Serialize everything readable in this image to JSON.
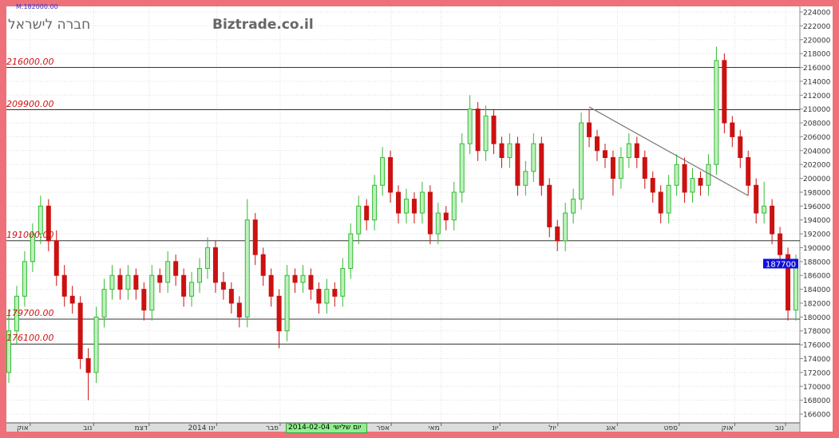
{
  "header": {
    "top_note": "M.182000.00",
    "company": "חברה לישראל",
    "brand": "Biztrade.co.il"
  },
  "cursor": {
    "day": "יום שלישי",
    "date": "2014-02-04"
  },
  "colors": {
    "up": "#33bb33",
    "down": "#cc1111",
    "level_line": "#333333",
    "level_label": "#d01010",
    "last_price_bg": "#1010dd",
    "frame": "#ee717a"
  },
  "chart_data": {
    "type": "candlestick",
    "ylim": [
      165000,
      225000
    ],
    "yticks": [
      166000,
      168000,
      170000,
      172000,
      174000,
      176000,
      178000,
      180000,
      182000,
      184000,
      186000,
      188000,
      190000,
      192000,
      194000,
      196000,
      198000,
      200000,
      202000,
      204000,
      206000,
      208000,
      210000,
      212000,
      214000,
      216000,
      218000,
      220000,
      222000,
      224000
    ],
    "xticks": [
      {
        "label": "אוק",
        "pos": 0.03
      },
      {
        "label": "נוב",
        "pos": 0.11
      },
      {
        "label": "דצמ",
        "pos": 0.18
      },
      {
        "label": "ינו 2014",
        "pos": 0.265
      },
      {
        "label": "פבר",
        "pos": 0.345
      },
      {
        "label": "אפר",
        "pos": 0.485
      },
      {
        "label": "מאי",
        "pos": 0.548
      },
      {
        "label": "יונ",
        "pos": 0.622
      },
      {
        "label": "יול",
        "pos": 0.695
      },
      {
        "label": "אוג",
        "pos": 0.77
      },
      {
        "label": "ספט",
        "pos": 0.848
      },
      {
        "label": "אוק",
        "pos": 0.918
      },
      {
        "label": "נוב",
        "pos": 0.982
      }
    ],
    "last_price": "187700",
    "levels": [
      {
        "value": 216000,
        "label": "216000.00"
      },
      {
        "value": 209900,
        "label": "209900.00"
      },
      {
        "value": 191000,
        "label": "191000.00"
      },
      {
        "value": 179700,
        "label": "179700.00"
      },
      {
        "value": 176100,
        "label": "176100.00"
      }
    ],
    "trendline": {
      "from": {
        "candle": 73,
        "price": 210300
      },
      "to": {
        "candle": 93,
        "price": 197500
      }
    },
    "candles_ohlc": [
      [
        172000,
        181000,
        170500,
        178000
      ],
      [
        178000,
        184500,
        176000,
        183000
      ],
      [
        183000,
        189500,
        181500,
        188000
      ],
      [
        188000,
        193500,
        186500,
        192000
      ],
      [
        192000,
        197500,
        190500,
        196000
      ],
      [
        196000,
        197000,
        189500,
        191000
      ],
      [
        191000,
        192500,
        184500,
        186000
      ],
      [
        186000,
        187500,
        181500,
        183000
      ],
      [
        183000,
        184500,
        180500,
        182000
      ],
      [
        182000,
        183000,
        172500,
        174000
      ],
      [
        174000,
        175500,
        168000,
        172000
      ],
      [
        172000,
        181500,
        170500,
        180000
      ],
      [
        180000,
        185500,
        178500,
        184000
      ],
      [
        184000,
        187500,
        182500,
        186000
      ],
      [
        186000,
        187000,
        182500,
        184000
      ],
      [
        184000,
        187500,
        182500,
        186000
      ],
      [
        186000,
        187000,
        182500,
        184000
      ],
      [
        184000,
        185000,
        179500,
        181000
      ],
      [
        181000,
        187500,
        179500,
        186000
      ],
      [
        186000,
        187000,
        183500,
        185000
      ],
      [
        185000,
        189500,
        183500,
        188000
      ],
      [
        188000,
        189000,
        184500,
        186000
      ],
      [
        186000,
        187000,
        181500,
        183000
      ],
      [
        183000,
        186500,
        181500,
        185000
      ],
      [
        185000,
        188500,
        183500,
        187000
      ],
      [
        187000,
        191500,
        185500,
        190000
      ],
      [
        190000,
        191000,
        183500,
        185000
      ],
      [
        185000,
        186500,
        182500,
        184000
      ],
      [
        184000,
        185000,
        180500,
        182000
      ],
      [
        182000,
        183000,
        178500,
        180000
      ],
      [
        180000,
        197000,
        178500,
        194000
      ],
      [
        194000,
        195000,
        187500,
        189000
      ],
      [
        189000,
        190000,
        184500,
        186000
      ],
      [
        186000,
        187000,
        181500,
        183000
      ],
      [
        183000,
        184000,
        175500,
        178000
      ],
      [
        178000,
        187500,
        176500,
        186000
      ],
      [
        186000,
        187000,
        183500,
        185000
      ],
      [
        185000,
        187500,
        183500,
        186000
      ],
      [
        186000,
        187000,
        182500,
        184000
      ],
      [
        184000,
        185000,
        180500,
        182000
      ],
      [
        182000,
        185500,
        180500,
        184000
      ],
      [
        184000,
        185000,
        181500,
        183000
      ],
      [
        183000,
        188500,
        181500,
        187000
      ],
      [
        187000,
        193500,
        185500,
        192000
      ],
      [
        192000,
        197500,
        190500,
        196000
      ],
      [
        196000,
        197000,
        192500,
        194000
      ],
      [
        194000,
        200500,
        192500,
        199000
      ],
      [
        199000,
        204500,
        197500,
        203000
      ],
      [
        203000,
        204000,
        196500,
        198000
      ],
      [
        198000,
        199000,
        193500,
        195000
      ],
      [
        195000,
        198500,
        193500,
        197000
      ],
      [
        197000,
        198000,
        193500,
        195000
      ],
      [
        195000,
        199500,
        193500,
        198000
      ],
      [
        198000,
        199000,
        190500,
        192000
      ],
      [
        192000,
        196500,
        190500,
        195000
      ],
      [
        195000,
        196000,
        192500,
        194000
      ],
      [
        194000,
        199500,
        192500,
        198000
      ],
      [
        198000,
        206500,
        196500,
        205000
      ],
      [
        205000,
        212000,
        203500,
        210000
      ],
      [
        210000,
        211000,
        202500,
        204000
      ],
      [
        204000,
        210500,
        202500,
        209000
      ],
      [
        209000,
        210000,
        203500,
        205000
      ],
      [
        205000,
        206000,
        201500,
        203000
      ],
      [
        203000,
        206500,
        201500,
        205000
      ],
      [
        205000,
        206000,
        197500,
        199000
      ],
      [
        199000,
        202500,
        197500,
        201000
      ],
      [
        201000,
        206500,
        199500,
        205000
      ],
      [
        205000,
        206000,
        197500,
        199000
      ],
      [
        199000,
        200000,
        191500,
        193000
      ],
      [
        193000,
        194000,
        189500,
        191000
      ],
      [
        191000,
        196500,
        189500,
        195000
      ],
      [
        195000,
        198500,
        193500,
        197000
      ],
      [
        197000,
        209500,
        195500,
        208000
      ],
      [
        208000,
        210000,
        204500,
        206000
      ],
      [
        206000,
        207000,
        202500,
        204000
      ],
      [
        204000,
        205000,
        201500,
        203000
      ],
      [
        203000,
        204000,
        197500,
        200000
      ],
      [
        200000,
        204500,
        198500,
        203000
      ],
      [
        203000,
        206500,
        201500,
        205000
      ],
      [
        205000,
        206000,
        201500,
        203000
      ],
      [
        203000,
        204000,
        198500,
        200000
      ],
      [
        200000,
        201000,
        196500,
        198000
      ],
      [
        198000,
        199000,
        193500,
        195000
      ],
      [
        195000,
        200500,
        193500,
        199000
      ],
      [
        199000,
        203500,
        197500,
        202000
      ],
      [
        202000,
        203000,
        196500,
        198000
      ],
      [
        198000,
        201500,
        196500,
        200000
      ],
      [
        200000,
        201000,
        197500,
        199000
      ],
      [
        199000,
        203500,
        197500,
        202000
      ],
      [
        202000,
        219000,
        200500,
        217000
      ],
      [
        217000,
        218000,
        206500,
        208000
      ],
      [
        208000,
        209000,
        204500,
        206000
      ],
      [
        206000,
        207000,
        201500,
        203000
      ],
      [
        203000,
        204000,
        197500,
        199000
      ],
      [
        199000,
        200000,
        193500,
        195000
      ],
      [
        195000,
        199500,
        193500,
        196000
      ],
      [
        196000,
        197000,
        190500,
        192000
      ],
      [
        192000,
        193000,
        187500,
        189000
      ],
      [
        189000,
        190000,
        179500,
        181000
      ],
      [
        181000,
        189000,
        179500,
        187700
      ]
    ]
  }
}
